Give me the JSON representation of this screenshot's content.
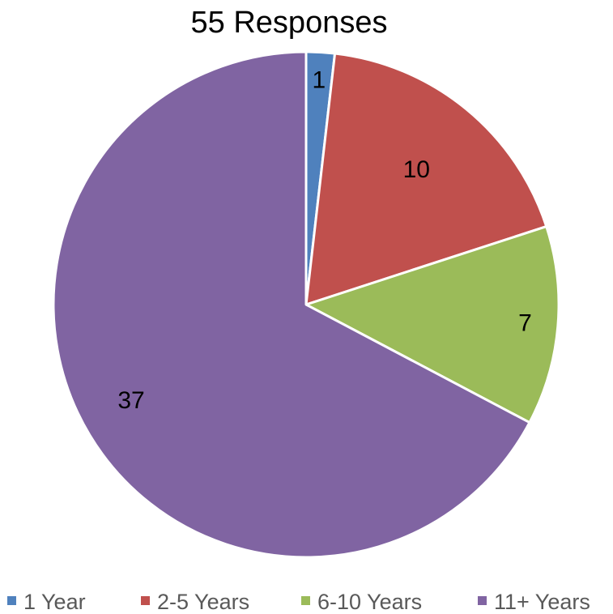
{
  "chart_data": {
    "type": "pie",
    "title": "55 Responses",
    "categories": [
      "1 Year",
      "2-5 Years",
      "6-10 Years",
      "11+ Years"
    ],
    "values": [
      1,
      10,
      7,
      37
    ],
    "colors": [
      "#4F81BD",
      "#C0504D",
      "#9BBB59",
      "#8064A2"
    ],
    "data_labels": [
      "1",
      "10",
      "7",
      "37"
    ],
    "legend": "bottom",
    "start_angle": "12 o'clock",
    "direction": "clockwise"
  }
}
